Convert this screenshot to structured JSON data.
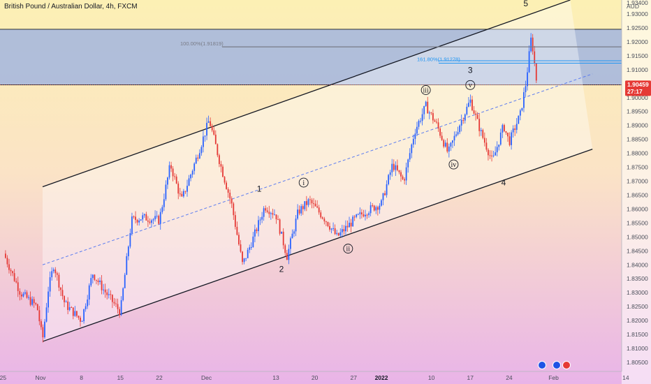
{
  "title": "British Pound / Australian Dollar, 4h, FXCM",
  "currency": "AUD",
  "colors": {
    "up": "#2962ff",
    "down": "#e53935",
    "channel": "#131722",
    "midline": "#5b7cf0",
    "zone": "#9fb3e0",
    "fib_100": "#787b86",
    "fib_1618": "#2196f3",
    "tag": "#e53935"
  },
  "last_price": {
    "value": "1.90459",
    "countdown": "27:17",
    "price": 1.90459
  },
  "wave_labels": [
    {
      "text": "5",
      "circled": false,
      "x": "Jan 27",
      "y": 1.9338
    },
    {
      "text": "3",
      "circled": false,
      "x": "Jan 17",
      "y": 1.9098
    },
    {
      "text": "4",
      "circled": false,
      "x": "Jan 23",
      "y": 1.8695
    },
    {
      "text": "1",
      "circled": false,
      "x": "Dec 10",
      "y": 1.8672
    },
    {
      "text": "2",
      "circled": false,
      "x": "Dec 14",
      "y": 1.8385
    },
    {
      "text": "i",
      "circled": true,
      "x": "Dec 18",
      "y": 1.8695
    },
    {
      "text": "ii",
      "circled": true,
      "x": "Dec 26",
      "y": 1.8458
    },
    {
      "text": "iii",
      "circled": true,
      "x": "Jan 9",
      "y": 1.9027
    },
    {
      "text": "iv",
      "circled": true,
      "x": "Jan 14",
      "y": 1.876
    },
    {
      "text": "v",
      "circled": true,
      "x": "Jan 17",
      "y": 1.9045
    }
  ],
  "fib_labels": [
    {
      "text": "100.00%(1.91819)",
      "price": 1.91819
    },
    {
      "text": "161.80%(1.91278)",
      "price": 1.91278
    }
  ],
  "chart_data": {
    "type": "candlestick",
    "title": "British Pound / Australian Dollar, 4h, FXCM",
    "xlabel": "",
    "ylabel": "AUD",
    "ylim": [
      1.8025,
      1.9375
    ],
    "y_ticks": [
      "1.80500",
      "1.81000",
      "1.81500",
      "1.82000",
      "1.82500",
      "1.83000",
      "1.83500",
      "1.84000",
      "1.84500",
      "1.85000",
      "1.85500",
      "1.86000",
      "1.86500",
      "1.87000",
      "1.87500",
      "1.88000",
      "1.88500",
      "1.89000",
      "1.89500",
      "1.90000",
      "1.90500",
      "1.91000",
      "1.91500",
      "1.92000",
      "1.92500",
      "1.93000",
      "1.93400"
    ],
    "x_ticks": [
      "25",
      "Nov",
      "8",
      "15",
      "22",
      "Dec",
      "13",
      "20",
      "27",
      "2022",
      "10",
      "17",
      "24",
      "Feb",
      "14"
    ],
    "price_path": [
      {
        "t": "Oct 25",
        "p": 1.844
      },
      {
        "t": "Oct 28",
        "p": 1.83
      },
      {
        "t": "Oct 31",
        "p": 1.825
      },
      {
        "t": "Nov 1",
        "p": 1.813
      },
      {
        "t": "Nov 2",
        "p": 1.831
      },
      {
        "t": "Nov 3",
        "p": 1.84
      },
      {
        "t": "Nov 5",
        "p": 1.826
      },
      {
        "t": "Nov 8",
        "p": 1.82
      },
      {
        "t": "Nov 10",
        "p": 1.837
      },
      {
        "t": "Nov 12",
        "p": 1.831
      },
      {
        "t": "Nov 15",
        "p": 1.823
      },
      {
        "t": "Nov 17",
        "p": 1.856
      },
      {
        "t": "Nov 19",
        "p": 1.857
      },
      {
        "t": "Nov 22",
        "p": 1.856
      },
      {
        "t": "Nov 24",
        "p": 1.876
      },
      {
        "t": "Nov 26",
        "p": 1.863
      },
      {
        "t": "Nov 29",
        "p": 1.88
      },
      {
        "t": "Dec 1",
        "p": 1.892
      },
      {
        "t": "Dec 3",
        "p": 1.876
      },
      {
        "t": "Dec 5",
        "p": 1.862
      },
      {
        "t": "Dec 7",
        "p": 1.84
      },
      {
        "t": "Dec 9",
        "p": 1.85
      },
      {
        "t": "Dec 11",
        "p": 1.861
      },
      {
        "t": "Dec 13",
        "p": 1.858
      },
      {
        "t": "Dec 15",
        "p": 1.843
      },
      {
        "t": "Dec 17",
        "p": 1.859
      },
      {
        "t": "Dec 19",
        "p": 1.863
      },
      {
        "t": "Dec 22",
        "p": 1.856
      },
      {
        "t": "Dec 24",
        "p": 1.85
      },
      {
        "t": "Dec 27",
        "p": 1.856
      },
      {
        "t": "Dec 29",
        "p": 1.859
      },
      {
        "t": "Jan 1",
        "p": 1.862
      },
      {
        "t": "Jan 3",
        "p": 1.876
      },
      {
        "t": "Jan 5",
        "p": 1.87
      },
      {
        "t": "Jan 7",
        "p": 1.888
      },
      {
        "t": "Jan 9",
        "p": 1.897
      },
      {
        "t": "Jan 11",
        "p": 1.89
      },
      {
        "t": "Jan 13",
        "p": 1.88
      },
      {
        "t": "Jan 15",
        "p": 1.89
      },
      {
        "t": "Jan 17",
        "p": 1.899
      },
      {
        "t": "Jan 19",
        "p": 1.887
      },
      {
        "t": "Jan 21",
        "p": 1.877
      },
      {
        "t": "Jan 23",
        "p": 1.89
      },
      {
        "t": "Jan 24",
        "p": 1.884
      },
      {
        "t": "Jan 26",
        "p": 1.894
      },
      {
        "t": "Jan 27",
        "p": 1.905
      },
      {
        "t": "Jan 28",
        "p": 1.922
      },
      {
        "t": "Jan 29",
        "p": 1.9046
      }
    ],
    "channel": {
      "upper": [
        {
          "t": "Nov 1",
          "p": 1.868
        },
        {
          "t": "Feb 4",
          "p": 1.935
        }
      ],
      "lower": [
        {
          "t": "Nov 1",
          "p": 1.8125
        },
        {
          "t": "Feb 8",
          "p": 1.8815
        }
      ],
      "mid": [
        {
          "t": "Nov 1",
          "p": 1.84
        },
        {
          "t": "Feb 8",
          "p": 1.9085
        }
      ]
    },
    "zone": {
      "from": 1.90459,
      "to": 1.9245
    },
    "grid": false,
    "legend": "none"
  }
}
